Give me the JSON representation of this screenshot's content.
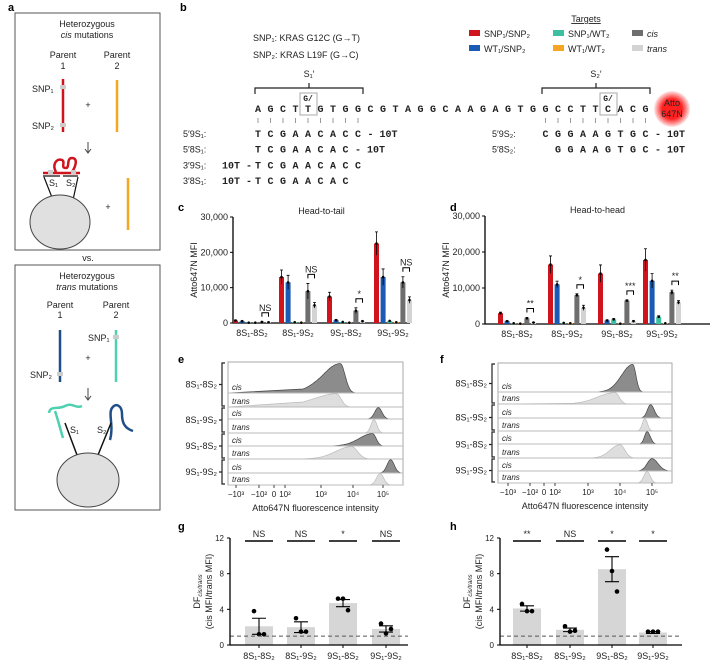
{
  "panel_labels": {
    "a": "a",
    "b": "b",
    "c": "c",
    "d": "d",
    "e": "e",
    "f": "f",
    "g": "g",
    "h": "h"
  },
  "panel_a": {
    "cis_box": {
      "title1": "Heterozygous",
      "title2_italic": "cis",
      "title2_rest": " mutations",
      "parent1": "Parent",
      "parent1_num": "1",
      "parent2": "Parent",
      "parent2_num": "2",
      "snp1": "SNP₁",
      "snp2": "SNP₂",
      "plus": "+",
      "s1": "S₁",
      "s2": "S₂"
    },
    "vs": "vs.",
    "trans_box": {
      "title1": "Heterozygous",
      "title2_italic": "trans",
      "title2_rest": " mutations",
      "parent1": "Parent",
      "parent1_num": "1",
      "parent2": "Parent",
      "parent2_num": "2",
      "snp1": "SNP₁",
      "snp2": "SNP₂",
      "plus": "+",
      "s1": "S₁",
      "s2": "S₂"
    }
  },
  "panel_b": {
    "snp1_desc": "SNP₁: KRAS G12C (G→T)",
    "snp2_desc": "SNP₂: KRAS L19F (G→C)",
    "s1_label": "S₁′",
    "s2_label": "S₂′",
    "mut_label": "G/",
    "sequence": "AGCTTGTGGCGTAGGCAAGAGTGGCCTTCACG",
    "fluor_label1": "Atto",
    "fluor_label2": "647N",
    "probes_left": [
      {
        "label": "5′9S₁:",
        "prefix": "",
        "seq": "TCGAACACC",
        "suffix": "- 10T"
      },
      {
        "label": "5′8S₁:",
        "prefix": "",
        "seq": "TCGAACAC",
        "suffix": "- 10T"
      },
      {
        "label": "3′9S₁:",
        "prefix": "10T -",
        "seq": "TCGAACACC",
        "suffix": ""
      },
      {
        "label": "3′8S₁:",
        "prefix": "10T -",
        "seq": "TCGAACAC",
        "suffix": ""
      }
    ],
    "probes_right": [
      {
        "label": "5′9S₂:",
        "seq": "CGGAAGTGC",
        "suffix": "- 10T"
      },
      {
        "label": "5′8S₂:",
        "seq": "GGAAGTGC",
        "suffix": "- 10T"
      }
    ],
    "legend": {
      "title": "Targets",
      "items": [
        {
          "label": "SNP₁/SNP₂",
          "color": "#d0141e",
          "italic": false
        },
        {
          "label": "WT₁/SNP₂",
          "color": "#1a5bb5",
          "italic": false
        },
        {
          "label": "SNP₁/WT₂",
          "color": "#3cc0a0",
          "italic": false
        },
        {
          "label": "WT₁/WT₂",
          "color": "#f5a623",
          "italic": false
        },
        {
          "label": "cis",
          "color": "#6e6e6e",
          "italic": true
        },
        {
          "label": "trans",
          "color": "#d3d3d3",
          "italic": true
        }
      ]
    }
  },
  "chart_data": [
    {
      "panel": "c",
      "type": "bar",
      "title": "Head-to-tail",
      "ylabel": "Atto647N MFI",
      "ylim": [
        0,
        30000
      ],
      "yticks": [
        "0",
        "10,000",
        "20,000",
        "30,000"
      ],
      "categories": [
        "8S₁-8S₂",
        "8S₁-9S₂",
        "9S₁-8S₂",
        "9S₁-9S₂"
      ],
      "series": [
        {
          "name": "SNP₁/SNP₂",
          "values": [
            700,
            13000,
            7500,
            22500
          ],
          "sem": [
            150,
            2000,
            1200,
            3300
          ]
        },
        {
          "name": "WT₁/SNP₂",
          "values": [
            500,
            11500,
            800,
            13000
          ],
          "sem": [
            100,
            2000,
            150,
            2300
          ]
        },
        {
          "name": "SNP₁/WT₂",
          "values": [
            100,
            200,
            300,
            600
          ],
          "sem": [
            0,
            0,
            0,
            0
          ]
        },
        {
          "name": "WT₁/WT₂",
          "values": [
            100,
            100,
            100,
            200
          ],
          "sem": [
            0,
            0,
            0,
            0
          ]
        },
        {
          "name": "cis",
          "values": [
            300,
            9000,
            3500,
            11500
          ],
          "sem": [
            50,
            2200,
            800,
            1600
          ]
        },
        {
          "name": "trans",
          "values": [
            200,
            5000,
            500,
            6500
          ],
          "sem": [
            50,
            800,
            100,
            900
          ]
        }
      ],
      "significance": [
        "NS",
        "NS",
        "*",
        "NS"
      ]
    },
    {
      "panel": "d",
      "type": "bar",
      "title": "Head-to-head",
      "ylabel": "Atto647N MFI",
      "ylim": [
        0,
        30000
      ],
      "yticks": [
        "0",
        "10,000",
        "20,000",
        "30,000"
      ],
      "categories": [
        "8S₁-8S₂",
        "8S₁-9S₂",
        "9S₁-8S₂",
        "9S₁-9S₂"
      ],
      "series": [
        {
          "name": "SNP₁/SNP₂",
          "values": [
            3000,
            16500,
            14000,
            17800
          ],
          "sem": [
            300,
            2400,
            2400,
            3100
          ]
        },
        {
          "name": "WT₁/SNP₂",
          "values": [
            800,
            11000,
            1000,
            12000
          ],
          "sem": [
            100,
            900,
            150,
            2000
          ]
        },
        {
          "name": "SNP₁/WT₂",
          "values": [
            200,
            300,
            1300,
            2000
          ],
          "sem": [
            0,
            0,
            200,
            300
          ]
        },
        {
          "name": "WT₁/WT₂",
          "values": [
            100,
            200,
            100,
            200
          ],
          "sem": [
            0,
            0,
            0,
            0
          ]
        },
        {
          "name": "cis",
          "values": [
            1600,
            8000,
            6500,
            8800
          ],
          "sem": [
            200,
            400,
            200,
            600
          ]
        },
        {
          "name": "trans",
          "values": [
            400,
            4500,
            800,
            6000
          ],
          "sem": [
            50,
            700,
            100,
            500
          ]
        }
      ],
      "significance": [
        "**",
        "*",
        "***",
        "**"
      ]
    },
    {
      "panel": "e",
      "type": "histogram",
      "xlabel": "Atto647N fluorescence intensity",
      "xticks": [
        "−10³",
        "−10²",
        "0",
        "10²",
        "10³",
        "10⁴",
        "10⁵"
      ],
      "groups": [
        {
          "label": "8S₁-8S₂",
          "cis_peak": 400,
          "trans_peak": 300
        },
        {
          "label": "8S₁-9S₂",
          "cis_peak": 7000,
          "trans_peak": 5000
        },
        {
          "label": "9S₁-8S₂",
          "cis_peak": 4500,
          "trans_peak": 900
        },
        {
          "label": "9S₁-9S₂",
          "cis_peak": 18000,
          "trans_peak": 8000
        }
      ],
      "row_labels": {
        "cis": "cis",
        "trans": "trans"
      }
    },
    {
      "panel": "f",
      "type": "histogram",
      "xlabel": "Atto647N fluorescence intensity",
      "xticks": [
        "−10³",
        "−10²",
        "0",
        "10²",
        "10³",
        "10⁴",
        "10⁵"
      ],
      "groups": [
        {
          "label": "8S₁-8S₂",
          "cis_peak": 2500,
          "trans_peak": 700
        },
        {
          "label": "8S₁-9S₂",
          "cis_peak": 9000,
          "trans_peak": 6000
        },
        {
          "label": "9S₁-8S₂",
          "cis_peak": 7000,
          "trans_peak": 1000
        },
        {
          "label": "9S₁-9S₂",
          "cis_peak": 10000,
          "trans_peak": 7000
        }
      ],
      "row_labels": {
        "cis": "cis",
        "trans": "trans"
      }
    },
    {
      "panel": "g",
      "type": "bar",
      "ylabel_line1": "DF",
      "ylabel_sub": "cis/trans",
      "ylabel_line2": "(cis MFI/trans MFI)",
      "ylim": [
        0,
        12
      ],
      "yticks": [
        "0",
        "4",
        "8",
        "12"
      ],
      "reference_line": 1,
      "categories": [
        "8S₁-8S₂",
        "8S₁-9S₂",
        "9S₁-8S₂",
        "9S₁-9S₂"
      ],
      "values": [
        2.1,
        2.0,
        4.7,
        1.8
      ],
      "sem": [
        0.9,
        0.6,
        0.4,
        0.35
      ],
      "points": [
        [
          3.8,
          1.2,
          1.2
        ],
        [
          3.0,
          1.5,
          1.5
        ],
        [
          5.2,
          5.2,
          3.9
        ],
        [
          2.4,
          1.3,
          1.8
        ]
      ],
      "significance": [
        "NS",
        "NS",
        "*",
        "NS"
      ]
    },
    {
      "panel": "h",
      "type": "bar",
      "ylabel_line1": "DF",
      "ylabel_sub": "cis/trans",
      "ylabel_line2": "(cis MFI/trans MFI)",
      "ylim": [
        0,
        12
      ],
      "yticks": [
        "0",
        "4",
        "8",
        "12"
      ],
      "reference_line": 1,
      "categories": [
        "8S₁-8S₂",
        "8S₁-9S₂",
        "9S₁-8S₂",
        "9S₁-9S₂"
      ],
      "values": [
        4.1,
        1.7,
        8.5,
        1.4
      ],
      "sem": [
        0.3,
        0.2,
        1.4,
        0.1
      ],
      "points": [
        [
          4.6,
          3.8,
          3.8
        ],
        [
          2.1,
          1.5,
          1.6
        ],
        [
          10.7,
          8.3,
          6.0
        ],
        [
          1.5,
          1.5,
          1.5
        ]
      ],
      "significance": [
        "**",
        "NS",
        "*",
        "*"
      ]
    }
  ]
}
